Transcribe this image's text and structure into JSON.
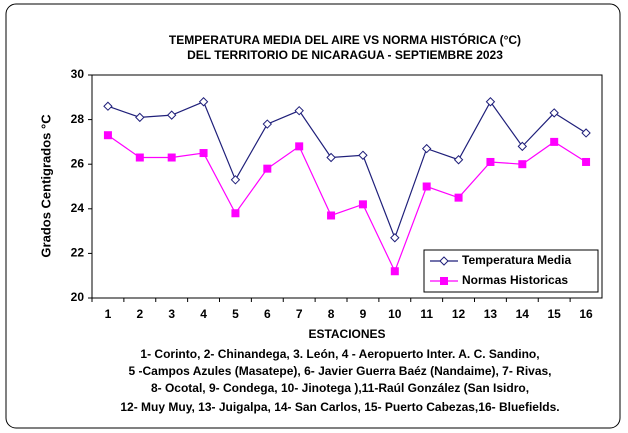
{
  "chart_data": {
    "type": "line",
    "title": [
      "TEMPERATURA  MEDIA DEL AIRE  VS NORMA  HISTÓRICA  (°C)",
      "DEL TERRITORIO  DE NICARAGUA   - SEPTIEMBRE 2023"
    ],
    "x_label": "ESTACIONES",
    "y_label": "Grados Centigrados °C",
    "categories": [
      "1",
      "2",
      "3",
      "4",
      "5",
      "6",
      "7",
      "8",
      "9",
      "10",
      "11",
      "12",
      "13",
      "14",
      "15",
      "16"
    ],
    "series": [
      {
        "name": "Temperatura Media",
        "color": "#1f1f7a",
        "marker": "diamond",
        "values": [
          28.6,
          28.1,
          28.2,
          28.8,
          25.3,
          27.8,
          28.4,
          26.3,
          26.4,
          22.7,
          26.7,
          26.2,
          28.8,
          26.8,
          28.3,
          27.4
        ]
      },
      {
        "name": "Normas Historicas",
        "color": "#ff00ff",
        "marker": "square",
        "values": [
          27.3,
          26.3,
          26.3,
          26.5,
          23.8,
          25.8,
          26.8,
          23.7,
          24.2,
          21.2,
          25.0,
          24.5,
          26.1,
          26.0,
          27.0,
          26.1
        ]
      }
    ],
    "ylim": [
      20,
      30
    ],
    "yticks": [
      20,
      22,
      24,
      26,
      28,
      30
    ],
    "legend": "lower right",
    "notes": [
      "1- Corinto,  2- Chinandega,  3. León, 4 - Aeropuerto Inter. A. C. Sandino,",
      "5 -Campos Azules (Masatepe), 6- Javier Guerra Baéz (Nandaime), 7- Rivas,",
      "8- Ocotal, 9- Condega, 10- Jinotega ),11-Raúl González (San Isidro,",
      "12- Muy Muy, 13- Juigalpa, 14- San Carlos, 15- Puerto Cabezas,16- Bluefields."
    ]
  }
}
